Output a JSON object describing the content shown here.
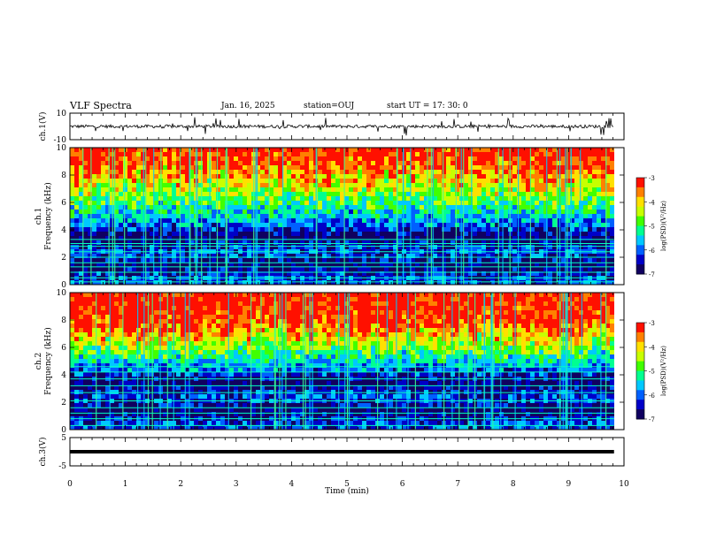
{
  "header": {
    "title": "VLF Spectra",
    "date": "Jan. 16, 2025",
    "station": "station=OUJ",
    "start": "start UT =  17: 30: 0"
  },
  "chart_data": [
    {
      "type": "line",
      "ylabel": "ch.1(V)",
      "ylim": [
        -10,
        10
      ],
      "yticks": [
        -10,
        10
      ],
      "xlim": [
        0,
        10
      ],
      "x_extent": 9.82,
      "baseline": 0,
      "spike_max": 7,
      "color": "#000000"
    },
    {
      "type": "heatmap",
      "ylabel": "ch.1 Frequency (kHz)",
      "ylim": [
        0,
        10
      ],
      "yticks": [
        0,
        2,
        4,
        6,
        8,
        10
      ],
      "xlim": [
        0,
        10
      ],
      "x_extent": 9.82,
      "colorbar": {
        "label": "log(PSD)(V²/Hz)",
        "ticks": [
          -3,
          -4,
          -5,
          -6,
          -7
        ],
        "range": [
          -7,
          -3
        ]
      },
      "lines_khz": [
        0.2,
        0.5,
        0.9,
        1.3,
        1.6,
        2.0,
        2.4,
        2.8,
        3.0,
        3.3
      ]
    },
    {
      "type": "heatmap",
      "ylabel": "ch.2 Frequency (kHz)",
      "ylim": [
        0,
        10
      ],
      "yticks": [
        0,
        2,
        4,
        6,
        8,
        10
      ],
      "xlim": [
        0,
        10
      ],
      "x_extent": 9.82,
      "colorbar": {
        "label": "log(PSD)(V²/Hz)",
        "ticks": [
          -3,
          -4,
          -5,
          -6,
          -7
        ],
        "range": [
          -7,
          -3
        ]
      },
      "lines_khz": [
        0.3,
        0.8,
        1.2,
        1.6,
        2.1,
        2.7,
        3.2,
        3.7,
        4.2,
        4.6
      ]
    },
    {
      "type": "line",
      "ylabel": "ch.3(V)",
      "ylim": [
        -5,
        5
      ],
      "yticks": [
        -5,
        5
      ],
      "xlim": [
        0,
        10
      ],
      "x_extent": 9.82,
      "value": 0,
      "xlabel": "Time (min)",
      "xticks": [
        0,
        1,
        2,
        3,
        4,
        5,
        6,
        7,
        8,
        9,
        10
      ],
      "color": "#000000"
    }
  ],
  "colormap": [
    "#100060",
    "#0000c8",
    "#0060ff",
    "#00c8ff",
    "#00ff90",
    "#40ff00",
    "#c8ff00",
    "#ffe000",
    "#ff8000",
    "#ff1000",
    "#ffffff"
  ]
}
